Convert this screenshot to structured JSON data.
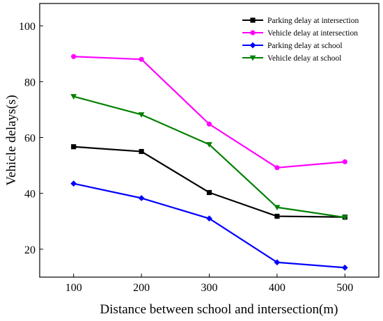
{
  "chart_data": {
    "type": "line",
    "xlabel": "Distance between school and intersection(m)",
    "ylabel": "Vehicle delays(s)",
    "x": [
      100,
      200,
      300,
      400,
      500
    ],
    "xlim": [
      50,
      550
    ],
    "ylim": [
      10,
      108
    ],
    "xticks": [
      100,
      200,
      300,
      400,
      500
    ],
    "yticks": [
      20,
      40,
      60,
      80,
      100
    ],
    "grid": false,
    "legend_position": "top-right",
    "series": [
      {
        "name": "Parking delay at intersection",
        "color": "#000000",
        "marker": "square",
        "values": [
          56.7,
          55.0,
          40.3,
          31.8,
          31.5
        ]
      },
      {
        "name": "Vehicle delay at intersection",
        "color": "#ff00ff",
        "marker": "circle",
        "values": [
          89.0,
          88.0,
          64.8,
          49.2,
          51.3
        ]
      },
      {
        "name": "Parking delay at school",
        "color": "#0000ff",
        "marker": "diamond",
        "values": [
          43.5,
          38.3,
          31.0,
          15.3,
          13.4
        ]
      },
      {
        "name": "Vehicle delay at school",
        "color": "#008000",
        "marker": "triangle-down",
        "values": [
          74.7,
          68.2,
          57.5,
          35.0,
          31.4
        ]
      }
    ]
  }
}
